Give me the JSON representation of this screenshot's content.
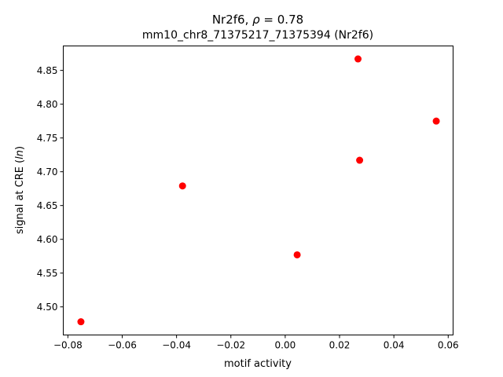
{
  "chart_data": {
    "type": "scatter",
    "title_line1_prefix": "Nr2f6, ",
    "title_line1_symbol": "ρ",
    "title_line1_suffix": " = 0.78",
    "title_line2": "mm10_chr8_71375217_71375394 (Nr2f6)",
    "xlabel": "motif activity",
    "ylabel_prefix": "signal at CRE (",
    "ylabel_italic": "ln",
    "ylabel_suffix": ")",
    "xlim": [
      -0.0817,
      0.0618
    ],
    "ylim": [
      4.4584,
      4.8862
    ],
    "xticks": [
      -0.08,
      -0.06,
      -0.04,
      -0.02,
      0.0,
      0.02,
      0.04,
      0.06
    ],
    "xtick_labels": [
      "−0.08",
      "−0.06",
      "−0.04",
      "−0.02",
      "0.00",
      "0.02",
      "0.04",
      "0.06"
    ],
    "yticks": [
      4.5,
      4.55,
      4.6,
      4.65,
      4.7,
      4.75,
      4.8,
      4.85
    ],
    "ytick_labels": [
      "4.50",
      "4.55",
      "4.60",
      "4.65",
      "4.70",
      "4.75",
      "4.80",
      "4.85"
    ],
    "marker_color": "#ff0000",
    "grid": false,
    "points": [
      {
        "x": -0.0752,
        "y": 4.478
      },
      {
        "x": -0.0378,
        "y": 4.679
      },
      {
        "x": 0.0044,
        "y": 4.577
      },
      {
        "x": 0.0268,
        "y": 4.867
      },
      {
        "x": 0.0274,
        "y": 4.717
      },
      {
        "x": 0.0556,
        "y": 4.775
      }
    ]
  }
}
